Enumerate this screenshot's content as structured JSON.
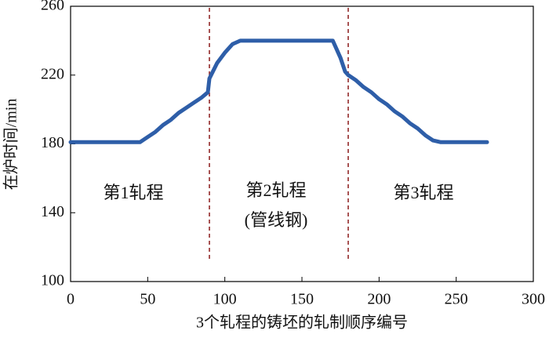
{
  "chart_data": {
    "type": "line",
    "xlabel": "3个轧程的铸坯的轧制顺序编号",
    "ylabel": "在炉时间/min",
    "x": [
      0,
      5,
      10,
      15,
      20,
      25,
      30,
      35,
      40,
      45,
      50,
      55,
      60,
      65,
      70,
      75,
      80,
      85,
      89,
      90,
      95,
      100,
      105,
      110,
      115,
      120,
      125,
      130,
      135,
      140,
      145,
      150,
      155,
      160,
      165,
      170,
      175,
      178,
      180,
      185,
      190,
      195,
      200,
      205,
      210,
      215,
      220,
      225,
      230,
      235,
      240,
      245,
      250,
      255,
      260,
      265,
      270
    ],
    "series": [
      {
        "color": "#2e5ea8",
        "values": [
          181,
          181,
          181,
          181,
          181,
          181,
          181,
          181,
          181,
          181,
          184,
          187,
          191,
          194,
          198,
          201,
          204,
          207,
          210,
          218,
          227,
          233,
          238,
          240,
          240,
          240,
          240,
          240,
          240,
          240,
          240,
          240,
          240,
          240,
          240,
          240,
          230,
          222,
          220,
          217,
          213,
          210,
          206,
          203,
          199,
          196,
          192,
          189,
          185,
          182,
          181,
          181,
          181,
          181,
          181,
          181,
          181
        ]
      }
    ],
    "vlines": [
      90,
      180
    ],
    "annotations": [
      "第1轧程",
      "第2轧程",
      "(管线钢)",
      "第3轧程"
    ],
    "xlim": [
      0,
      300
    ],
    "xticks": [
      0,
      50,
      100,
      150,
      200,
      250,
      300
    ],
    "ylim": [
      100,
      260
    ],
    "yticks": [
      100,
      140,
      180,
      220,
      260
    ]
  }
}
